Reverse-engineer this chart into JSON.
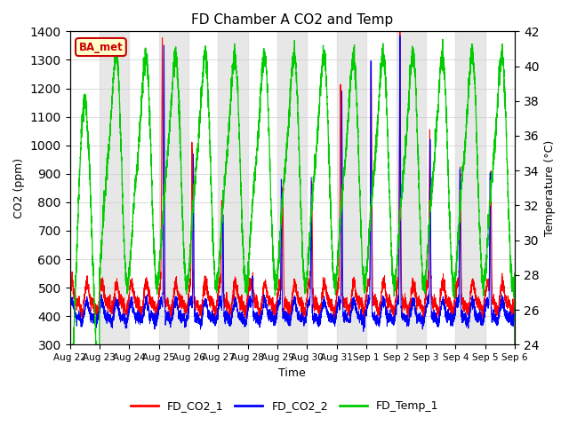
{
  "title": "FD Chamber A CO2 and Temp",
  "xlabel": "Time",
  "ylabel_left": "CO2 (ppm)",
  "ylabel_right": "Temperature (°C)",
  "ylim_left": [
    300,
    1400
  ],
  "ylim_right": [
    24,
    42
  ],
  "yticks_left": [
    300,
    400,
    500,
    600,
    700,
    800,
    900,
    1000,
    1100,
    1200,
    1300,
    1400
  ],
  "yticks_right": [
    24,
    26,
    28,
    30,
    32,
    34,
    36,
    38,
    40,
    42
  ],
  "color_co2_1": "red",
  "color_co2_2": "blue",
  "color_temp": "#00cc00",
  "annotation_text": "BA_met",
  "annotation_bg": "#ffffcc",
  "annotation_border": "#cc0000",
  "n_days": 15,
  "x_tick_labels": [
    "Aug 22",
    "Aug 23",
    "Aug 24",
    "Aug 25",
    "Aug 26",
    "Aug 27",
    "Aug 28",
    "Aug 29",
    "Aug 30",
    "Aug 31",
    "Sep 1",
    "Sep 2",
    "Sep 3",
    "Sep 4",
    "Sep 5",
    "Sep 6"
  ],
  "bg_band_color": "#d8d8d8",
  "bg_band_alpha": 0.6
}
